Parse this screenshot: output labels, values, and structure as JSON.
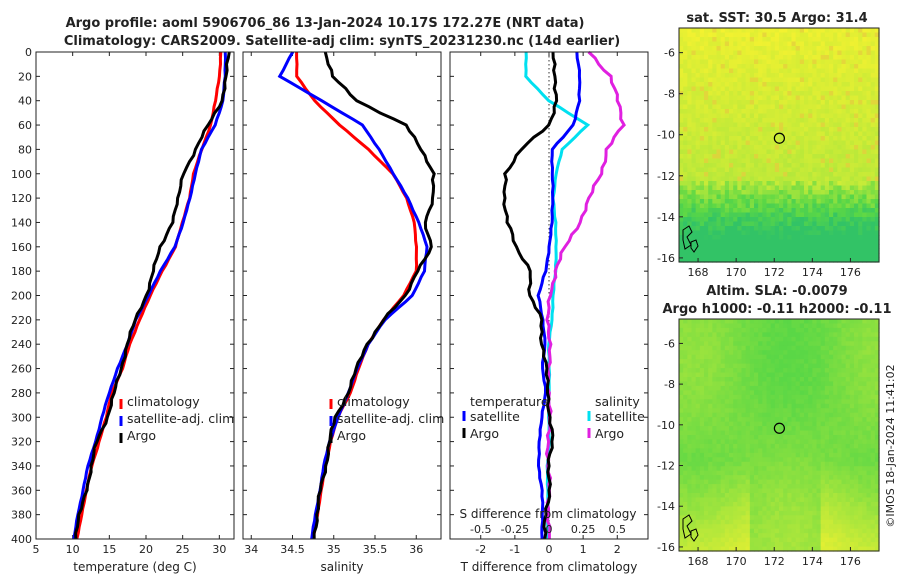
{
  "title_line1": "Argo profile: aoml 5906706_86 13-Jan-2024 10.17S 172.27E (NRT data)",
  "title_line2": "Climatology: CARS2009. Satellite-adj clim: synTS_20231230.nc (14d earlier)",
  "credit": "©IMOS 18-Jan-2024 11:41:02",
  "colors": {
    "climatology": "#ff0000",
    "satellite": "#0000ff",
    "argo": "#000000",
    "salinity_satellite": "#00e0f0",
    "salinity_argo": "#e020e0"
  },
  "chart_data": [
    {
      "type": "line",
      "name": "temperature-profile",
      "xlabel": "temperature (deg C)",
      "ylabel": "",
      "xlim": [
        5,
        32
      ],
      "ylim": [
        400,
        0
      ],
      "xticks": [
        "5",
        "10",
        "15",
        "20",
        "25",
        "30"
      ],
      "yticks": [
        "0",
        "20",
        "40",
        "60",
        "80",
        "100",
        "120",
        "140",
        "160",
        "180",
        "200",
        "220",
        "240",
        "260",
        "280",
        "300",
        "320",
        "340",
        "360",
        "380",
        "400"
      ],
      "legend": [
        "climatology",
        "satellite-adj. clim",
        "Argo"
      ],
      "series": [
        {
          "name": "climatology",
          "depth": [
            0,
            20,
            40,
            60,
            80,
            100,
            120,
            140,
            160,
            180,
            200,
            220,
            240,
            260,
            280,
            300,
            320,
            340,
            360,
            380,
            400
          ],
          "values": [
            30.2,
            30.0,
            29.5,
            28.8,
            27.6,
            26.5,
            25.9,
            25.0,
            24.0,
            22.2,
            20.6,
            19.1,
            17.8,
            16.8,
            15.3,
            14.6,
            13.6,
            12.6,
            11.9,
            11.2,
            10.6
          ]
        },
        {
          "name": "satellite-adj. clim",
          "depth": [
            0,
            20,
            40,
            60,
            80,
            100,
            120,
            140,
            160,
            180,
            200,
            220,
            240,
            260,
            280,
            300,
            320,
            340,
            360,
            380,
            400
          ],
          "values": [
            30.8,
            30.8,
            30.5,
            29.4,
            27.6,
            26.7,
            26.0,
            25.1,
            23.9,
            22.0,
            20.3,
            18.6,
            17.5,
            16.1,
            15.0,
            14.0,
            13.1,
            12.1,
            11.4,
            10.7,
            10.2
          ]
        },
        {
          "name": "Argo",
          "depth": [
            0,
            20,
            40,
            60,
            80,
            100,
            120,
            140,
            160,
            180,
            200,
            220,
            240,
            260,
            280,
            300,
            320,
            340,
            360,
            380,
            400
          ],
          "values": [
            31.3,
            31.0,
            30.3,
            28.5,
            26.8,
            25.0,
            24.5,
            23.5,
            22.0,
            21.0,
            20.0,
            18.6,
            17.4,
            16.6,
            15.7,
            14.7,
            13.3,
            12.6,
            11.8,
            11.0,
            10.3
          ]
        }
      ]
    },
    {
      "type": "line",
      "name": "salinity-profile",
      "xlabel": "salinity",
      "ylabel": "",
      "xlim": [
        33.9,
        36.3
      ],
      "ylim": [
        400,
        0
      ],
      "xticks": [
        "34",
        "34.5",
        "35",
        "35.5",
        "36"
      ],
      "legend": [
        "climatology",
        "satellite-adj. clim",
        "Argo"
      ],
      "series": [
        {
          "name": "climatology",
          "depth": [
            0,
            20,
            40,
            60,
            80,
            100,
            120,
            140,
            160,
            180,
            200,
            220,
            240,
            260,
            280,
            300,
            320,
            340,
            360,
            380,
            400
          ],
          "values": [
            34.55,
            34.55,
            34.77,
            35.07,
            35.42,
            35.72,
            35.88,
            35.98,
            36.0,
            36.0,
            35.85,
            35.6,
            35.42,
            35.3,
            35.2,
            35.05,
            34.96,
            34.9,
            34.85,
            34.8,
            34.75
          ]
        },
        {
          "name": "satellite-adj. clim",
          "depth": [
            0,
            20,
            40,
            60,
            80,
            100,
            120,
            140,
            160,
            180,
            200,
            220,
            240,
            260,
            280,
            300,
            320,
            340,
            360,
            380,
            400
          ],
          "values": [
            34.5,
            34.35,
            34.85,
            35.35,
            35.55,
            35.72,
            35.9,
            36.03,
            36.13,
            36.1,
            35.95,
            35.62,
            35.42,
            35.28,
            35.18,
            35.05,
            34.95,
            34.88,
            34.83,
            34.78,
            34.73
          ]
        },
        {
          "name": "Argo",
          "depth": [
            0,
            20,
            40,
            60,
            80,
            100,
            120,
            140,
            160,
            180,
            200,
            220,
            240,
            260,
            280,
            300,
            320,
            340,
            360,
            380,
            400
          ],
          "values": [
            34.9,
            34.98,
            35.28,
            35.88,
            36.05,
            36.22,
            36.2,
            36.1,
            36.2,
            36.0,
            35.88,
            35.6,
            35.4,
            35.28,
            35.17,
            35.02,
            34.95,
            34.9,
            34.84,
            34.8,
            34.75
          ]
        }
      ]
    },
    {
      "type": "line",
      "name": "difference-profile",
      "xlabel": "T difference from climatology",
      "xlabel2": "S difference from climatology",
      "xlim": [
        -2.9,
        2.9
      ],
      "ylim": [
        400,
        0
      ],
      "xticks": [
        "-2",
        "-1",
        "0",
        "1",
        "2"
      ],
      "xticks2": [
        "-0.5",
        "-0.25",
        "0",
        "0.25",
        "0.5"
      ],
      "legend_t_title": "temperature",
      "legend_s_title": "salinity",
      "legend_t": [
        "satellite",
        "Argo"
      ],
      "legend_s": [
        "satellite",
        "Argo"
      ],
      "series": [
        {
          "name": "T satellite",
          "depth": [
            0,
            20,
            40,
            60,
            80,
            100,
            120,
            140,
            160,
            180,
            200,
            220,
            240,
            260,
            280,
            300,
            320,
            340,
            360,
            380,
            400
          ],
          "values": [
            0.8,
            0.9,
            0.9,
            0.7,
            0.1,
            0.1,
            0.1,
            0.1,
            0.0,
            -0.1,
            -0.3,
            -0.2,
            -0.1,
            -0.2,
            -0.1,
            -0.2,
            -0.3,
            -0.3,
            -0.2,
            -0.2,
            -0.2
          ]
        },
        {
          "name": "T Argo",
          "depth": [
            0,
            20,
            40,
            60,
            80,
            100,
            120,
            140,
            160,
            180,
            200,
            220,
            240,
            260,
            280,
            300,
            320,
            340,
            360,
            380,
            400
          ],
          "values": [
            0.1,
            0.2,
            0.2,
            0.0,
            -0.8,
            -1.3,
            -1.3,
            -1.2,
            -1.0,
            -0.5,
            -0.6,
            -0.2,
            -0.2,
            -0.1,
            0.0,
            0.0,
            0.1,
            0.0,
            0.0,
            -0.1,
            -0.1
          ]
        },
        {
          "name": "S satellite",
          "depth": [
            0,
            20,
            40,
            60,
            80,
            100,
            120,
            140,
            160,
            180,
            200,
            220,
            240,
            260,
            280,
            300,
            320,
            340,
            360,
            380,
            400
          ],
          "values": [
            -0.17,
            -0.17,
            0.0,
            0.28,
            0.1,
            0.05,
            0.03,
            0.05,
            0.05,
            0.05,
            0.03,
            0.02,
            0.0,
            0.0,
            0.0,
            0.0,
            0.0,
            -0.01,
            -0.01,
            -0.01,
            -0.01
          ]
        },
        {
          "name": "S Argo",
          "depth": [
            0,
            20,
            40,
            60,
            80,
            100,
            120,
            140,
            160,
            180,
            200,
            220,
            240,
            260,
            280,
            300,
            320,
            340,
            360,
            380,
            400
          ],
          "values": [
            0.3,
            0.45,
            0.5,
            0.55,
            0.42,
            0.38,
            0.3,
            0.22,
            0.12,
            0.05,
            0.0,
            0.0,
            0.0,
            0.0,
            0.0,
            0.0,
            0.0,
            -0.01,
            0.0,
            0.0,
            0.0
          ]
        }
      ]
    },
    {
      "type": "heatmap",
      "name": "sst-map",
      "title": "sat. SST: 30.5 Argo: 31.4",
      "xlim": [
        167,
        177.5
      ],
      "ylim": [
        -16.2,
        -4.8
      ],
      "xticks": [
        "168",
        "170",
        "172",
        "174",
        "176"
      ],
      "yticks": [
        "-6",
        "-8",
        "-10",
        "-12",
        "-14",
        "-16"
      ],
      "marker": {
        "lon": 172.27,
        "lat": -10.17
      }
    },
    {
      "type": "heatmap",
      "name": "sla-map",
      "title": "Altim. SLA: -0.0079",
      "subtitle": "Argo h1000: -0.11 h2000: -0.11",
      "xlim": [
        167,
        177.5
      ],
      "ylim": [
        -16.2,
        -4.8
      ],
      "xticks": [
        "168",
        "170",
        "172",
        "174",
        "176"
      ],
      "yticks": [
        "-6",
        "-8",
        "-10",
        "-12",
        "-14",
        "-16"
      ],
      "marker": {
        "lon": 172.27,
        "lat": -10.17
      }
    }
  ]
}
